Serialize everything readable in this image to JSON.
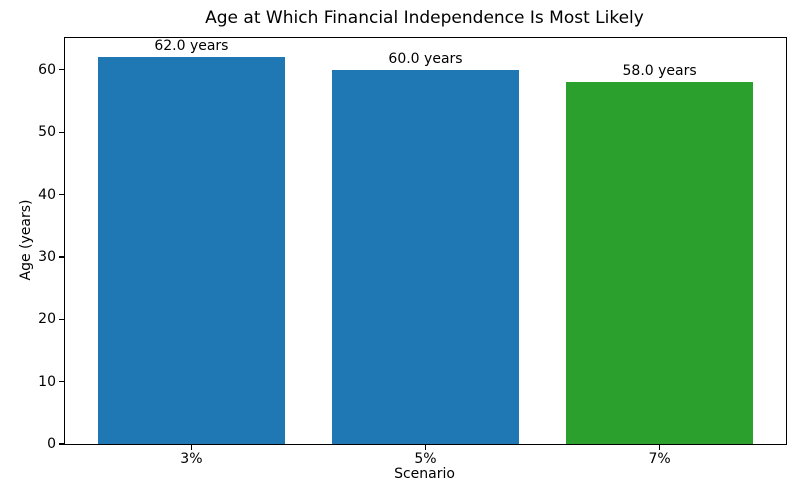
{
  "chart_data": {
    "type": "bar",
    "title": "Age at Which Financial Independence Is Most Likely",
    "xlabel": "Scenario",
    "ylabel": "Age (years)",
    "categories": [
      "3%",
      "5%",
      "7%"
    ],
    "values": [
      62.0,
      60.0,
      58.0
    ],
    "bar_labels": [
      "62.0 years",
      "60.0 years",
      "58.0 years"
    ],
    "bar_colors": [
      "#1f77b4",
      "#1f77b4",
      "#2ca02c"
    ],
    "ylim": [
      0,
      65.1
    ],
    "yticks": [
      0,
      10,
      20,
      30,
      40,
      50,
      60
    ],
    "grid": false,
    "legend": "none",
    "axis_color": "#000000",
    "text_color": "#000000",
    "background_color": "#ffffff"
  }
}
